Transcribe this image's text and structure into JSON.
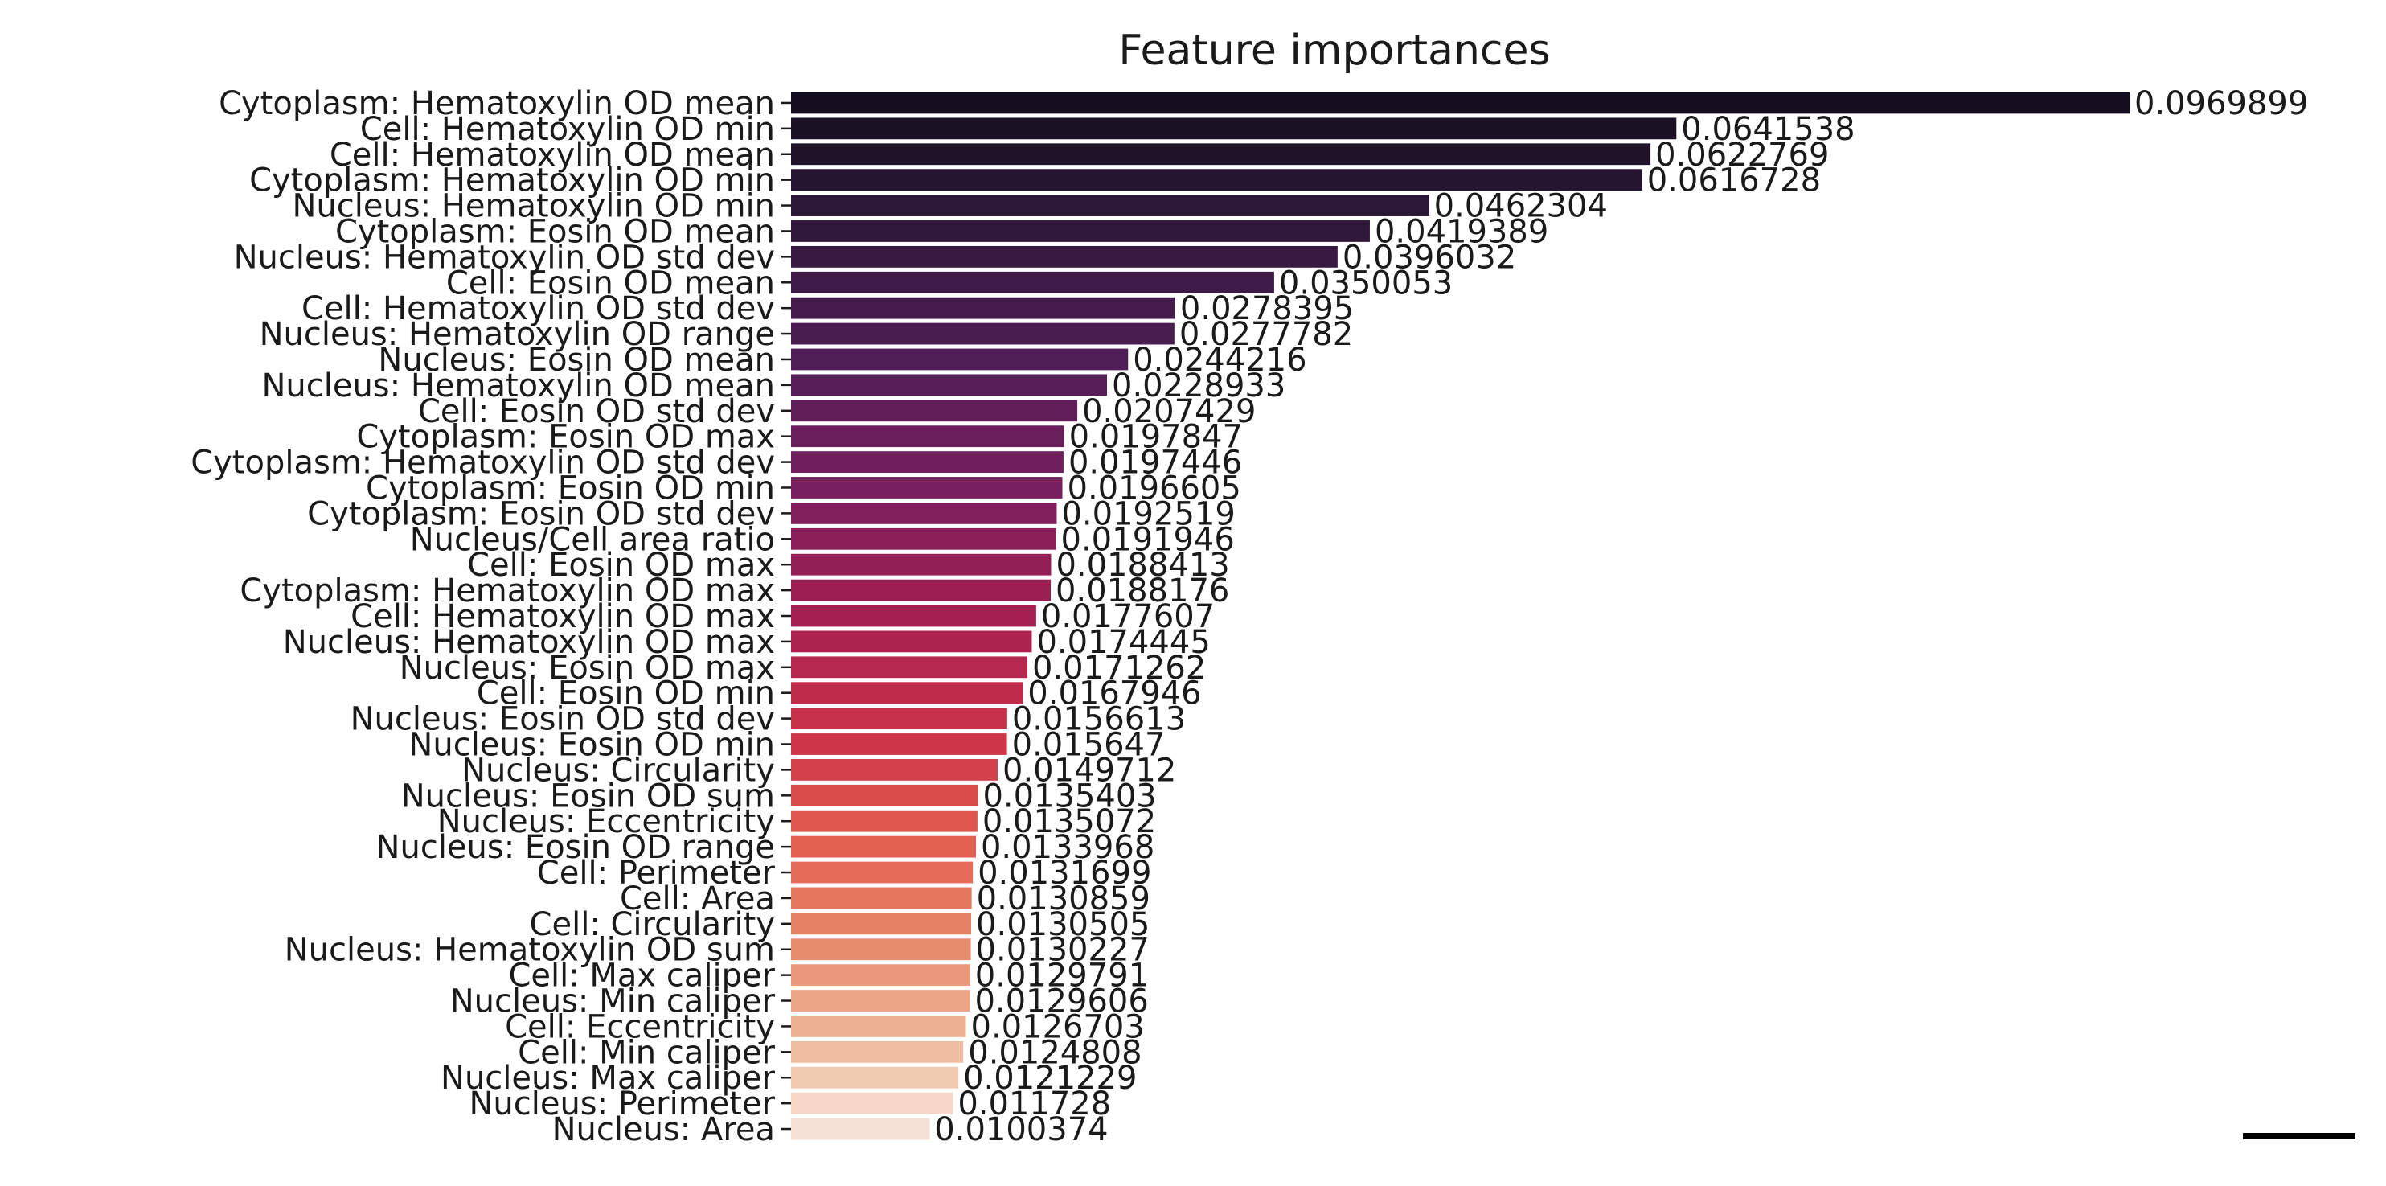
{
  "chart_data": {
    "type": "bar",
    "orientation": "horizontal",
    "title": "Feature importances",
    "xlabel": "",
    "ylabel": "",
    "grid": false,
    "legend": false,
    "colormap": "rocket",
    "colors": {
      "start": "#140f1f",
      "end": "#f5e2d6"
    },
    "xlim": [
      0,
      0.1
    ],
    "categories": [
      "Cytoplasm: Hematoxylin OD mean",
      "Cell: Hematoxylin OD min",
      "Cell: Hematoxylin OD mean",
      "Cytoplasm: Hematoxylin OD min",
      "Nucleus: Hematoxylin OD min",
      "Cytoplasm: Eosin OD mean",
      "Nucleus: Hematoxylin OD std dev",
      "Cell: Eosin OD mean",
      "Cell: Hematoxylin OD std dev",
      "Nucleus: Hematoxylin OD range",
      "Nucleus: Eosin OD mean",
      "Nucleus: Hematoxylin OD mean",
      "Cell: Eosin OD std dev",
      "Cytoplasm: Eosin OD max",
      "Cytoplasm: Hematoxylin OD std dev",
      "Cytoplasm: Eosin OD min",
      "Cytoplasm: Eosin OD std dev",
      "Nucleus/Cell area ratio",
      "Cell: Eosin OD max",
      "Cytoplasm: Hematoxylin OD max",
      "Cell: Hematoxylin OD max",
      "Nucleus: Hematoxylin OD max",
      "Nucleus: Eosin OD max",
      "Cell: Eosin OD min",
      "Nucleus: Eosin OD std dev",
      "Nucleus: Eosin OD min",
      "Nucleus: Circularity",
      "Nucleus: Eosin OD sum",
      "Nucleus: Eccentricity",
      "Nucleus: Eosin OD range",
      "Cell: Perimeter",
      "Cell: Area",
      "Cell: Circularity",
      "Nucleus: Hematoxylin OD sum",
      "Cell: Max caliper",
      "Nucleus: Min caliper",
      "Cell: Eccentricity",
      "Cell: Min caliper",
      "Nucleus: Max caliper",
      "Nucleus: Perimeter",
      "Nucleus: Area"
    ],
    "values": [
      0.0969899,
      0.0641538,
      0.0622769,
      0.0616728,
      0.0462304,
      0.0419389,
      0.0396032,
      0.0350053,
      0.0278395,
      0.0277782,
      0.0244216,
      0.0228933,
      0.0207429,
      0.0197847,
      0.0197446,
      0.0196605,
      0.0192519,
      0.0191946,
      0.0188413,
      0.0188176,
      0.0177607,
      0.0174445,
      0.0171262,
      0.0167946,
      0.0156613,
      0.015647,
      0.0149712,
      0.0135403,
      0.0135072,
      0.0133968,
      0.0131699,
      0.0130859,
      0.0130505,
      0.0130227,
      0.0129791,
      0.0129606,
      0.0126703,
      0.0124808,
      0.0121229,
      0.011728,
      0.0100374
    ],
    "value_labels": [
      "0.0969899",
      "0.0641538",
      "0.0622769",
      "0.0616728",
      "0.0462304",
      "0.0419389",
      "0.0396032",
      "0.0350053",
      "0.0278395",
      "0.0277782",
      "0.0244216",
      "0.0228933",
      "0.0207429",
      "0.0197847",
      "0.0197446",
      "0.0196605",
      "0.0192519",
      "0.0191946",
      "0.0188413",
      "0.0188176",
      "0.0177607",
      "0.0174445",
      "0.0171262",
      "0.0167946",
      "0.0156613",
      "0.015647",
      "0.0149712",
      "0.0135403",
      "0.0135072",
      "0.0133968",
      "0.0131699",
      "0.0130859",
      "0.0130505",
      "0.0130227",
      "0.0129791",
      "0.0129606",
      "0.0126703",
      "0.0124808",
      "0.0121229",
      "0.011728",
      "0.0100374"
    ]
  }
}
